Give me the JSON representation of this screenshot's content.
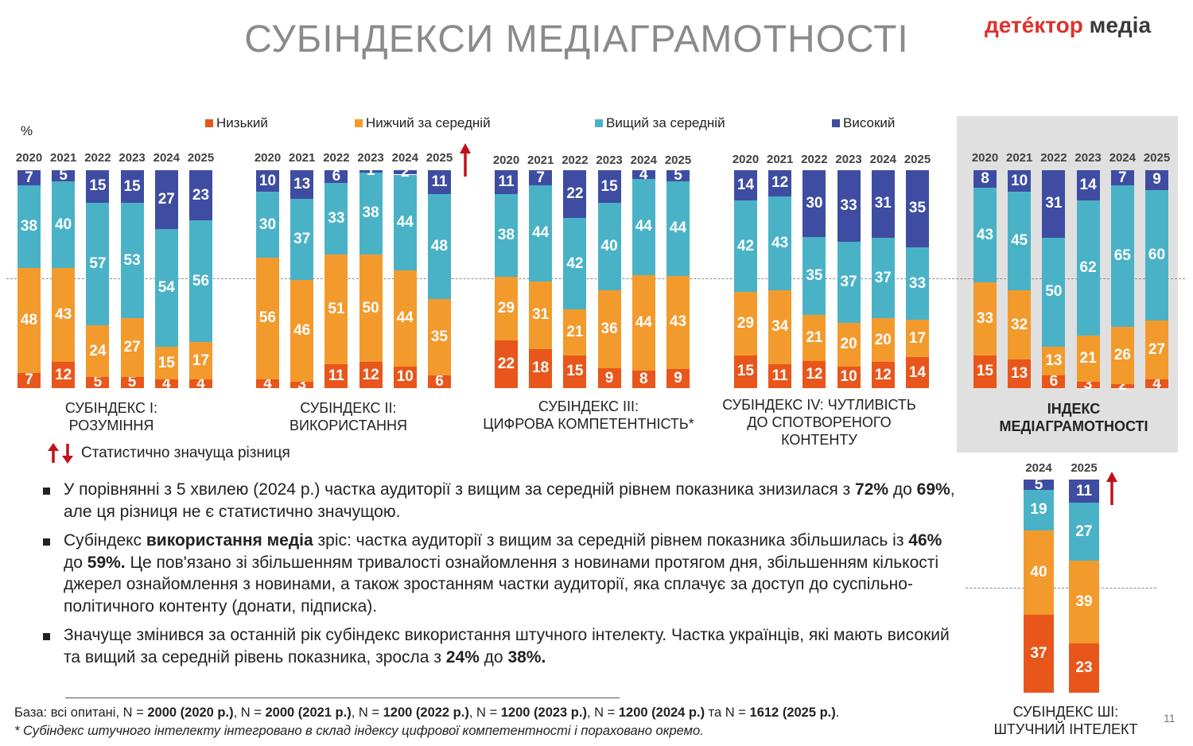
{
  "title": "СУБІНДЕКСИ МЕДІАГРАМОТНОСТІ",
  "logo": {
    "part1": "детéктор",
    "part2": "медіа"
  },
  "unit": "%",
  "colors": {
    "low": "#E8561B",
    "below": "#F39A2D",
    "above": "#4AB2C6",
    "high": "#3E4DA2"
  },
  "legend": [
    {
      "key": "low",
      "label": "Низький"
    },
    {
      "key": "below",
      "label": "Нижчий за середній"
    },
    {
      "key": "above",
      "label": "Вищий за середній"
    },
    {
      "key": "high",
      "label": "Високий"
    }
  ],
  "chart_data": [
    {
      "type": "bar",
      "stacked": true,
      "title": "СУБІНДЕКС І: РОЗУМІННЯ",
      "categories": [
        "2020",
        "2021",
        "2022",
        "2023",
        "2024",
        "2025"
      ],
      "series": [
        {
          "name": "Низький",
          "values": [
            7,
            12,
            5,
            5,
            4,
            4
          ]
        },
        {
          "name": "Нижчий за середній",
          "values": [
            48,
            43,
            24,
            27,
            15,
            17
          ]
        },
        {
          "name": "Вищий за середній",
          "values": [
            38,
            40,
            57,
            53,
            54,
            56
          ]
        },
        {
          "name": "Високий",
          "values": [
            7,
            5,
            15,
            15,
            27,
            23
          ]
        }
      ],
      "significant_change": false
    },
    {
      "type": "bar",
      "stacked": true,
      "title": "СУБІНДЕКС ІІ: ВИКОРИСТАННЯ",
      "categories": [
        "2020",
        "2021",
        "2022",
        "2023",
        "2024",
        "2025"
      ],
      "series": [
        {
          "name": "Низький",
          "values": [
            4,
            3,
            11,
            12,
            10,
            6
          ]
        },
        {
          "name": "Нижчий за середній",
          "values": [
            56,
            46,
            51,
            50,
            44,
            35
          ]
        },
        {
          "name": "Вищий за середній",
          "values": [
            30,
            37,
            33,
            38,
            44,
            48
          ]
        },
        {
          "name": "Високий",
          "values": [
            10,
            13,
            6,
            1,
            2,
            11
          ]
        }
      ],
      "significant_change": "up"
    },
    {
      "type": "bar",
      "stacked": true,
      "title": "СУБІНДЕКС ІІІ: ЦИФРОВА КОМПЕТЕНТНІСТЬ*",
      "categories": [
        "2020",
        "2021",
        "2022",
        "2023",
        "2024",
        "2025"
      ],
      "series": [
        {
          "name": "Низький",
          "values": [
            22,
            18,
            15,
            9,
            8,
            9
          ]
        },
        {
          "name": "Нижчий за середній",
          "values": [
            29,
            31,
            21,
            36,
            44,
            43
          ]
        },
        {
          "name": "Вищий за середній",
          "values": [
            38,
            44,
            42,
            40,
            44,
            44
          ]
        },
        {
          "name": "Високий",
          "values": [
            11,
            7,
            22,
            15,
            4,
            5
          ]
        }
      ],
      "significant_change": false
    },
    {
      "type": "bar",
      "stacked": true,
      "title": "СУБІНДЕКС IV: ЧУТЛИВІСТЬ ДО СПОТВОРЕНОГО КОНТЕНТУ",
      "categories": [
        "2020",
        "2021",
        "2022",
        "2023",
        "2024",
        "2025"
      ],
      "series": [
        {
          "name": "Низький",
          "values": [
            15,
            11,
            12,
            10,
            12,
            14
          ]
        },
        {
          "name": "Нижчий за середній",
          "values": [
            29,
            34,
            21,
            20,
            20,
            17
          ]
        },
        {
          "name": "Вищий за середній",
          "values": [
            42,
            43,
            35,
            37,
            37,
            33
          ]
        },
        {
          "name": "Високий",
          "values": [
            14,
            12,
            30,
            33,
            31,
            35
          ]
        }
      ],
      "significant_change": false
    },
    {
      "type": "bar",
      "stacked": true,
      "title": "ІНДЕКС МЕДІАГРАМОТНОСТІ",
      "categories": [
        "2020",
        "2021",
        "2022",
        "2023",
        "2024",
        "2025"
      ],
      "series": [
        {
          "name": "Низький",
          "values": [
            15,
            13,
            6,
            3,
            2,
            4
          ]
        },
        {
          "name": "Нижчий за середній",
          "values": [
            33,
            32,
            13,
            21,
            26,
            27
          ]
        },
        {
          "name": "Вищий за середній",
          "values": [
            43,
            45,
            50,
            62,
            65,
            60
          ]
        },
        {
          "name": "Високий",
          "values": [
            8,
            10,
            31,
            14,
            7,
            9
          ]
        }
      ],
      "significant_change": false
    },
    {
      "type": "bar",
      "stacked": true,
      "title": "СУБІНДЕКС ШІ: ШТУЧНИЙ ІНТЕЛЕКТ",
      "categories": [
        "2024",
        "2025"
      ],
      "series": [
        {
          "name": "Низький",
          "values": [
            37,
            23
          ]
        },
        {
          "name": "Нижчий за середній",
          "values": [
            40,
            39
          ]
        },
        {
          "name": "Вищий за середній",
          "values": [
            19,
            27
          ]
        },
        {
          "name": "Високий",
          "values": [
            5,
            11
          ]
        }
      ],
      "significant_change": "up"
    }
  ],
  "group_labels": [
    [
      "СУБІНДЕКС І:",
      "РОЗУМІННЯ"
    ],
    [
      "СУБІНДЕКС ІІ:",
      "ВИКОРИСТАННЯ"
    ],
    [
      "СУБІНДЕКС ІІІ:",
      "ЦИФРОВА КОМПЕТЕНТНІСТЬ*"
    ],
    [
      "СУБІНДЕКС IV: ЧУТЛИВІСТЬ",
      "ДО СПОТВОРЕНОГО",
      "КОНТЕНТУ"
    ],
    [
      "ІНДЕКС",
      "МЕДІАГРАМОТНОСТІ"
    ],
    [
      "СУБІНДЕКС ШІ:",
      "ШТУЧНИЙ ІНТЕЛЕКТ"
    ]
  ],
  "significance_legend": "Статистично значуща різниця",
  "bullets": [
    [
      {
        "t": "У порівнянні з 5 хвилею (2024 р.) частка аудиторії з вищим за середній рівнем показника знизилася з ",
        "b": false
      },
      {
        "t": "72%",
        "b": true
      },
      {
        "t": " до ",
        "b": false
      },
      {
        "t": "69%",
        "b": true
      },
      {
        "t": ", але ця різниця не є статистично значущою.",
        "b": false
      }
    ],
    [
      {
        "t": "Субіндекс ",
        "b": false
      },
      {
        "t": "використання медіа",
        "b": true
      },
      {
        "t": " зріс: частка аудиторії з вищим за середній рівнем показника збільшилась із ",
        "b": false
      },
      {
        "t": "46%",
        "b": true
      },
      {
        "t": " до ",
        "b": false
      },
      {
        "t": "59%.",
        "b": true
      },
      {
        "t": " Це пов'язано зі збільшенням тривалості ознайомлення з новинами протягом дня, збільшенням кількості джерел ознайомлення з новинами, а також зростанням частки аудиторії, яка сплачує за доступ до суспільно-політичного контенту (донати, підписка).",
        "b": false
      }
    ],
    [
      {
        "t": "Значуще змінився за останній рік субіндекс використання штучного інтелекту. Частка українців, які мають високий та вищий за середній рівень показника, зросла з ",
        "b": false
      },
      {
        "t": "24%",
        "b": true
      },
      {
        "t": " до ",
        "b": false
      },
      {
        "t": "38%.",
        "b": true
      }
    ]
  ],
  "footnote_base": [
    {
      "t": "База: всі опитані, N = ",
      "b": false
    },
    {
      "t": "2000 (2020 р.)",
      "b": true
    },
    {
      "t": ", N = ",
      "b": false
    },
    {
      "t": "2000 (2021 р.)",
      "b": true
    },
    {
      "t": ", N = ",
      "b": false
    },
    {
      "t": "1200 (2022 р.)",
      "b": true
    },
    {
      "t": ", N = ",
      "b": false
    },
    {
      "t": "1200 (2023 р.)",
      "b": true
    },
    {
      "t": ", N = ",
      "b": false
    },
    {
      "t": "1200 (2024 р.)",
      "b": true
    },
    {
      "t": " та N = ",
      "b": false
    },
    {
      "t": "1612 (2025 р.)",
      "b": true
    },
    {
      "t": ".",
      "b": false
    }
  ],
  "footnote_note": "* Субіндекс штучного інтелекту інтегровано в склад індексу цифрової компетентності і пораховано окремо.",
  "page_number": "11"
}
